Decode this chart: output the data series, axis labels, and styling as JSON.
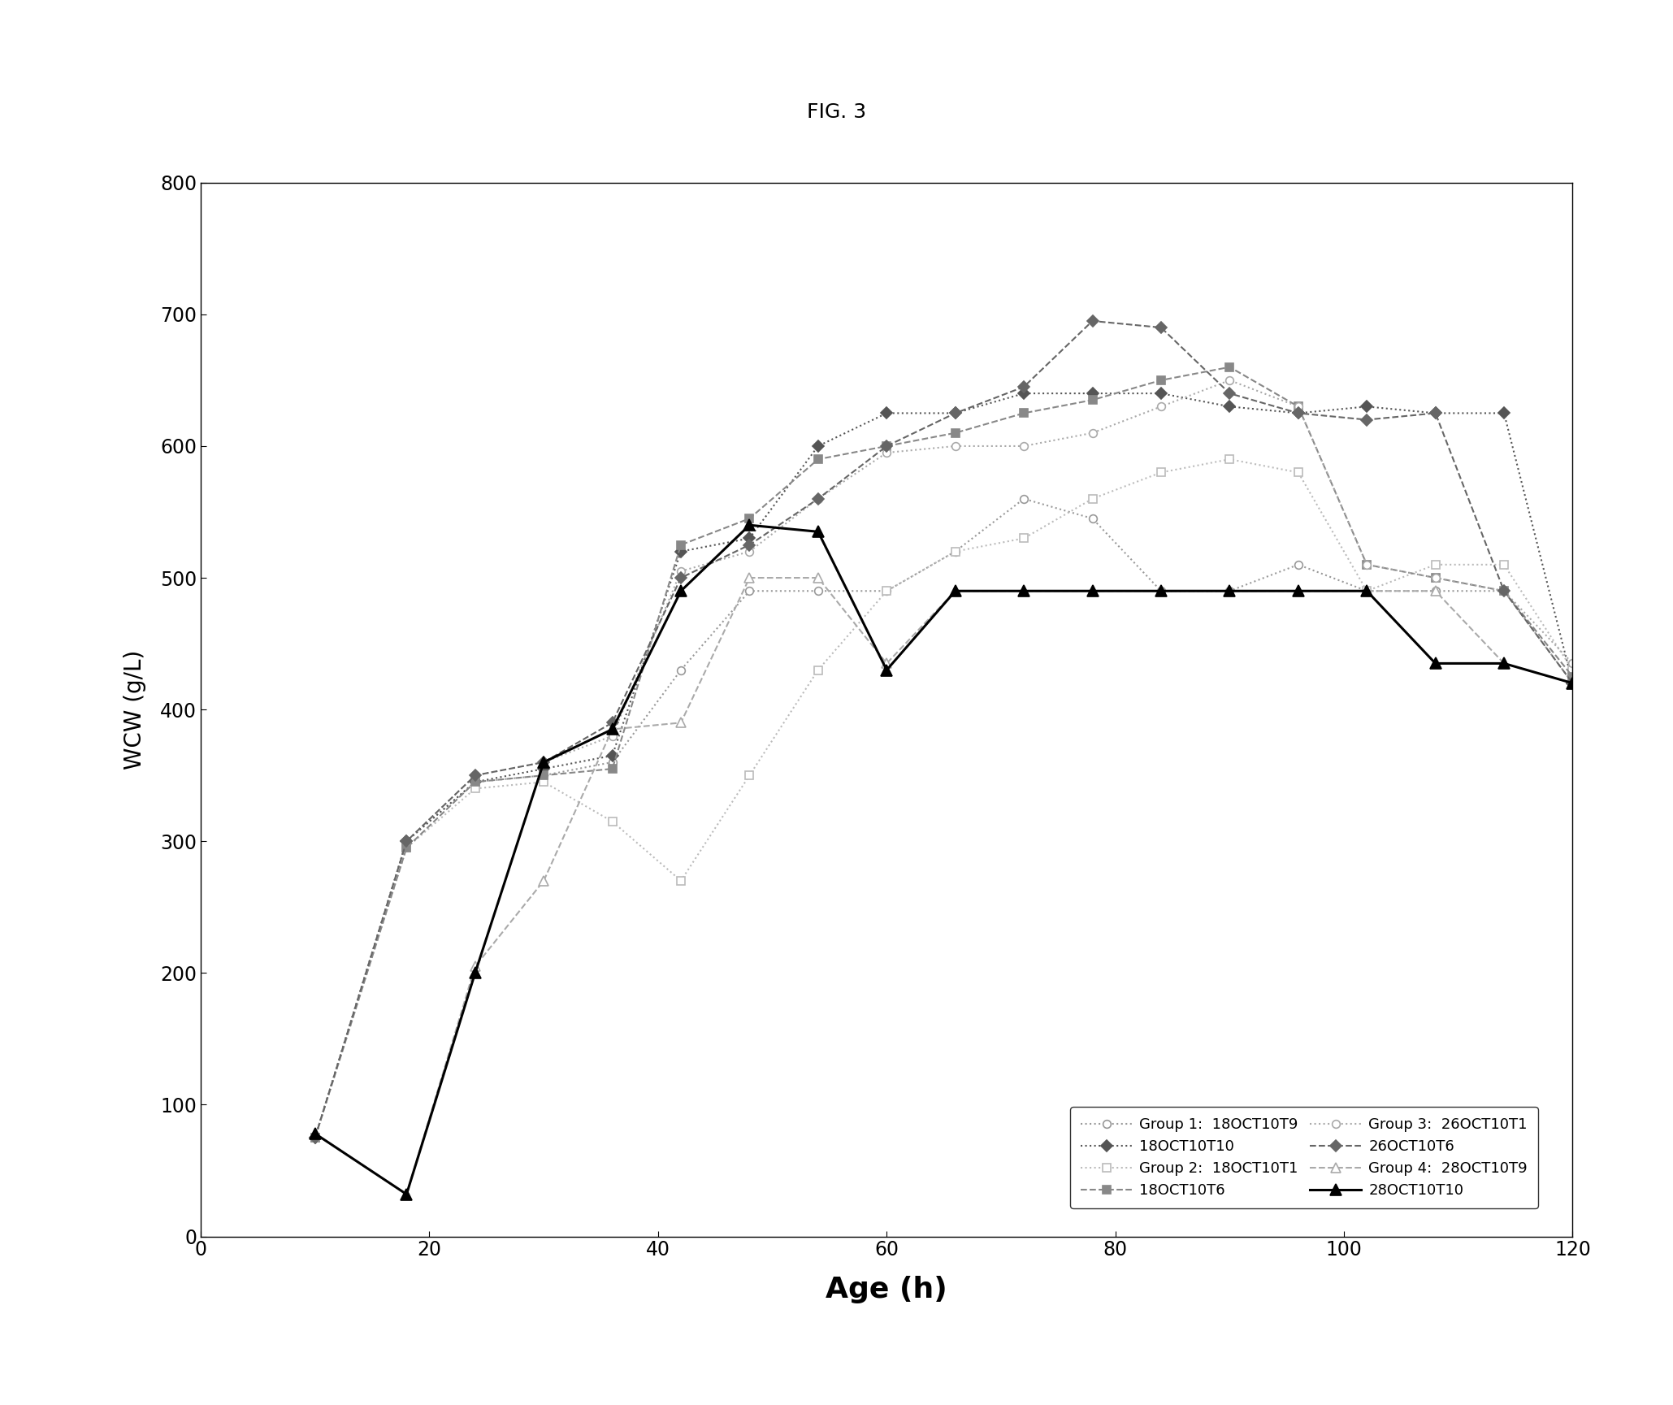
{
  "title": "FIG. 3",
  "xlabel": "Age (h)",
  "ylabel": "WCW (g/L)",
  "xlim": [
    0,
    120
  ],
  "ylim": [
    0,
    800
  ],
  "xticks": [
    0,
    20,
    40,
    60,
    80,
    100,
    120
  ],
  "yticks": [
    0,
    100,
    200,
    300,
    400,
    500,
    600,
    700,
    800
  ],
  "series": {
    "18OCT10T9": {
      "x": [
        10,
        18,
        24,
        30,
        36,
        42,
        48,
        54,
        60,
        66,
        72,
        78,
        84,
        90,
        96,
        102,
        108,
        114,
        120
      ],
      "y": [
        75,
        300,
        345,
        350,
        360,
        430,
        490,
        490,
        490,
        520,
        560,
        545,
        490,
        490,
        510,
        490,
        490,
        490,
        420
      ],
      "group": 1,
      "marker": "o",
      "linestyle": ":",
      "color": "#999999",
      "linewidth": 1.5,
      "markersize": 7,
      "fillstyle": "none"
    },
    "18OCT10T10": {
      "x": [
        10,
        18,
        24,
        30,
        36,
        42,
        48,
        54,
        60,
        66,
        72,
        78,
        84,
        90,
        96,
        102,
        108,
        114,
        120
      ],
      "y": [
        75,
        300,
        345,
        355,
        365,
        520,
        530,
        600,
        625,
        625,
        640,
        640,
        640,
        630,
        625,
        630,
        625,
        625,
        420
      ],
      "group": 1,
      "marker": "D",
      "linestyle": ":",
      "color": "#555555",
      "linewidth": 1.5,
      "markersize": 7,
      "fillstyle": "full"
    },
    "18OCT10T1": {
      "x": [
        10,
        18,
        24,
        30,
        36,
        42,
        48,
        54,
        60,
        66,
        72,
        78,
        84,
        90,
        96,
        102,
        108,
        114,
        120
      ],
      "y": [
        75,
        295,
        340,
        345,
        315,
        270,
        350,
        430,
        490,
        520,
        530,
        560,
        580,
        590,
        580,
        490,
        510,
        510,
        430
      ],
      "group": 2,
      "marker": "s",
      "linestyle": ":",
      "color": "#bbbbbb",
      "linewidth": 1.5,
      "markersize": 7,
      "fillstyle": "none"
    },
    "18OCT10T6": {
      "x": [
        10,
        18,
        24,
        30,
        36,
        42,
        48,
        54,
        60,
        66,
        72,
        78,
        84,
        90,
        96,
        102,
        108,
        114,
        120
      ],
      "y": [
        75,
        295,
        345,
        350,
        355,
        525,
        545,
        590,
        600,
        610,
        625,
        635,
        650,
        660,
        630,
        510,
        500,
        490,
        425
      ],
      "group": 2,
      "marker": "s",
      "linestyle": "--",
      "color": "#888888",
      "linewidth": 1.5,
      "markersize": 7,
      "fillstyle": "full"
    },
    "26OCT10T1": {
      "x": [
        10,
        18,
        24,
        30,
        36,
        42,
        48,
        54,
        60,
        66,
        72,
        78,
        84,
        90,
        96,
        102,
        108,
        114,
        120
      ],
      "y": [
        75,
        300,
        350,
        360,
        380,
        505,
        520,
        560,
        595,
        600,
        600,
        610,
        630,
        650,
        630,
        510,
        500,
        490,
        435
      ],
      "group": 3,
      "marker": "o",
      "linestyle": ":",
      "color": "#aaaaaa",
      "linewidth": 1.5,
      "markersize": 7,
      "fillstyle": "none"
    },
    "26OCT10T6": {
      "x": [
        10,
        18,
        24,
        30,
        36,
        42,
        48,
        54,
        60,
        66,
        72,
        78,
        84,
        90,
        96,
        102,
        108,
        114,
        120
      ],
      "y": [
        75,
        300,
        350,
        360,
        390,
        500,
        525,
        560,
        600,
        625,
        645,
        695,
        690,
        640,
        625,
        620,
        625,
        490,
        420
      ],
      "group": 3,
      "marker": "D",
      "linestyle": "--",
      "color": "#666666",
      "linewidth": 1.5,
      "markersize": 7,
      "fillstyle": "full"
    },
    "28OCT10T9": {
      "x": [
        10,
        18,
        24,
        30,
        36,
        42,
        48,
        54,
        60,
        66,
        72,
        78,
        84,
        90,
        96,
        102,
        108,
        114,
        120
      ],
      "y": [
        78,
        32,
        205,
        270,
        385,
        390,
        500,
        500,
        435,
        490,
        490,
        490,
        490,
        490,
        490,
        490,
        490,
        435,
        420
      ],
      "group": 4,
      "marker": "^",
      "linestyle": "--",
      "color": "#aaaaaa",
      "linewidth": 1.5,
      "markersize": 8,
      "fillstyle": "none"
    },
    "28OCT10T10": {
      "x": [
        10,
        18,
        24,
        30,
        36,
        42,
        48,
        54,
        60,
        66,
        72,
        78,
        84,
        90,
        96,
        102,
        108,
        114,
        120
      ],
      "y": [
        78,
        32,
        200,
        360,
        385,
        490,
        540,
        535,
        430,
        490,
        490,
        490,
        490,
        490,
        490,
        490,
        435,
        435,
        420
      ],
      "group": 4,
      "marker": "^",
      "linestyle": "-",
      "color": "#000000",
      "linewidth": 2.2,
      "markersize": 10,
      "fillstyle": "full"
    }
  },
  "legend_groups": [
    {
      "label": "Group 1:",
      "series_left": "18OCT10T9",
      "series_right": "18OCT10T10"
    },
    {
      "label": "Group 2:",
      "series_left": "18OCT10T1",
      "series_right": "18OCT10T6"
    },
    {
      "label": "Group 3:",
      "series_left": "26OCT10T1",
      "series_right": "26OCT10T6"
    },
    {
      "label": "Group 4:",
      "series_left": "28OCT10T9",
      "series_right": "28OCT10T10"
    }
  ],
  "figsize": [
    20.59,
    17.29
  ],
  "dpi": 100
}
